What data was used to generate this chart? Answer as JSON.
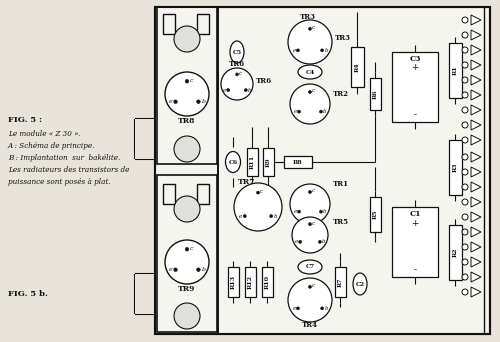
{
  "bg_color": "#e8e4dc",
  "board_bg": "#f5f5f0",
  "line_color": "#111111",
  "caption_lines": [
    "Le module « Z 30 ».",
    "A : Schéma de principe.",
    "B : Implantation  sur  bakélite.",
    "Les radiateurs des transistors de",
    "puissance sont posés à plat."
  ],
  "fig5a_text": "FIG. 5 :",
  "fig5b_text": "FIG. 5 b."
}
